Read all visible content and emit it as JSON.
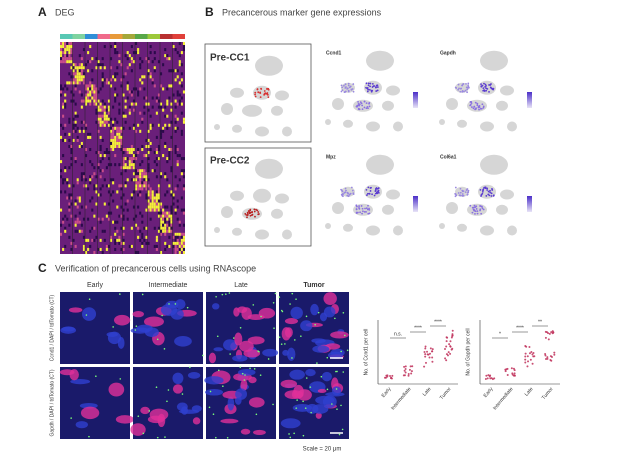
{
  "panel_a": {
    "label": "A",
    "title": "DEG"
  },
  "panel_b": {
    "label": "B",
    "title": "Precancerous marker gene expressions",
    "clusters": [
      "Pre-CC1",
      "Pre-CC2"
    ],
    "genes": [
      "Ccnd1",
      "Gapdh",
      "Mpz",
      "Col6a1"
    ]
  },
  "panel_c": {
    "label": "C",
    "title": "Verification of precancerous cells using RNAscope",
    "stages": [
      "Early",
      "Intermediate",
      "Late",
      "Tumor"
    ],
    "row_labels": [
      "Ccnd1 / DAPI / tdTomato (CT)",
      "Gapdh / DAPI / tdTomato (CT)"
    ],
    "scale": "Scale = 20 μm",
    "plots": [
      {
        "y_label": "No. of Ccnd1 per cell",
        "significance": [
          "n.s.",
          "****",
          "****"
        ]
      },
      {
        "y_label": "No. of Gapdh per cell",
        "significance": [
          "*",
          "****",
          "**"
        ]
      }
    ]
  }
}
